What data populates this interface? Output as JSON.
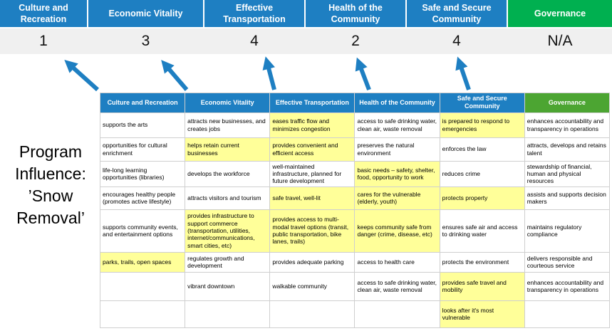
{
  "title": "Program Influence: ’Snow Removal’",
  "colors": {
    "blue": "#1E7FC2",
    "green_top": "#00B050",
    "green_table": "#4CA532",
    "highlight": "#FFFF99",
    "score_band": "#F0F0F0",
    "arrow": "#1E7FC2"
  },
  "categories": [
    {
      "label": "Culture and Recreation",
      "score": "1",
      "header_color": "blue"
    },
    {
      "label": "Economic Vitality",
      "score": "3",
      "header_color": "blue"
    },
    {
      "label": "Effective Transportation",
      "score": "4",
      "header_color": "blue"
    },
    {
      "label": "Health of the Community",
      "score": "2",
      "header_color": "blue"
    },
    {
      "label": "Safe and Secure Community",
      "score": "4",
      "header_color": "blue"
    },
    {
      "label": "Governance",
      "score": "N/A",
      "header_color": "green"
    }
  ],
  "table": {
    "rows": [
      [
        {
          "t": "supports the arts",
          "h": false
        },
        {
          "t": "attracts new businesses, and creates jobs",
          "h": false
        },
        {
          "t": "eases traffic flow and minimizes congestion",
          "h": true
        },
        {
          "t": "access to safe drinking water, clean air, waste removal",
          "h": false
        },
        {
          "t": "is prepared to respond to emergencies",
          "h": true
        },
        {
          "t": "enhances accountability and transparency in operations",
          "h": false
        }
      ],
      [
        {
          "t": "opportunities for cultural enrichment",
          "h": false
        },
        {
          "t": "helps retain current businesses",
          "h": true
        },
        {
          "t": "provides convenient and efficient access",
          "h": true
        },
        {
          "t": "preserves the natural environment",
          "h": false
        },
        {
          "t": "enforces the law",
          "h": false
        },
        {
          "t": "attracts, develops and retains talent",
          "h": false
        }
      ],
      [
        {
          "t": "life-long learning opportunities (libraries)",
          "h": false
        },
        {
          "t": "develops the workforce",
          "h": false
        },
        {
          "t": "well-maintained infrastructure, planned for future development",
          "h": false
        },
        {
          "t": "basic needs – safety, shelter, food, opportunity to work",
          "h": true
        },
        {
          "t": "reduces crime",
          "h": false
        },
        {
          "t": "stewardship of financial, human and physical resources",
          "h": false
        }
      ],
      [
        {
          "t": "encourages healthy people (promotes active lifestyle)",
          "h": false
        },
        {
          "t": "attracts visitors and tourism",
          "h": false
        },
        {
          "t": "safe travel, well-lit",
          "h": true
        },
        {
          "t": "cares for the vulnerable (elderly, youth)",
          "h": true
        },
        {
          "t": "protects property",
          "h": true
        },
        {
          "t": "assists and supports decision makers",
          "h": false
        }
      ],
      [
        {
          "t": "supports community events, and entertainment options",
          "h": false
        },
        {
          "t": "provides infrastructure to support commerce (transportation, utilities, internet/communications, smart cities, etc)",
          "h": true
        },
        {
          "t": "provides access to multi-modal travel options (transit, public transportation, bike lanes, trails)",
          "h": true
        },
        {
          "t": "keeps community safe from danger (crime, disease, etc)",
          "h": true
        },
        {
          "t": "ensures safe air and access to drinking water",
          "h": false
        },
        {
          "t": "maintains regulatory compliance",
          "h": false
        }
      ],
      [
        {
          "t": "parks, trails, open spaces",
          "h": true
        },
        {
          "t": "regulates growth and development",
          "h": false
        },
        {
          "t": "provides adequate parking",
          "h": false
        },
        {
          "t": "access to health care",
          "h": false
        },
        {
          "t": "protects the environment",
          "h": false
        },
        {
          "t": "delivers responsible and courteous service",
          "h": false
        }
      ],
      [
        {
          "t": "",
          "h": false
        },
        {
          "t": "vibrant downtown",
          "h": false
        },
        {
          "t": "walkable community",
          "h": false
        },
        {
          "t": "access to safe drinking water, clean air, waste removal",
          "h": false
        },
        {
          "t": "provides safe travel and mobility",
          "h": true
        },
        {
          "t": "enhances accountability and transparency in operations",
          "h": false
        }
      ],
      [
        {
          "t": "",
          "h": false
        },
        {
          "t": "",
          "h": false
        },
        {
          "t": "",
          "h": false
        },
        {
          "t": "",
          "h": false
        },
        {
          "t": "looks after it's most vulnerable",
          "h": true
        },
        {
          "t": "",
          "h": false
        }
      ]
    ]
  }
}
